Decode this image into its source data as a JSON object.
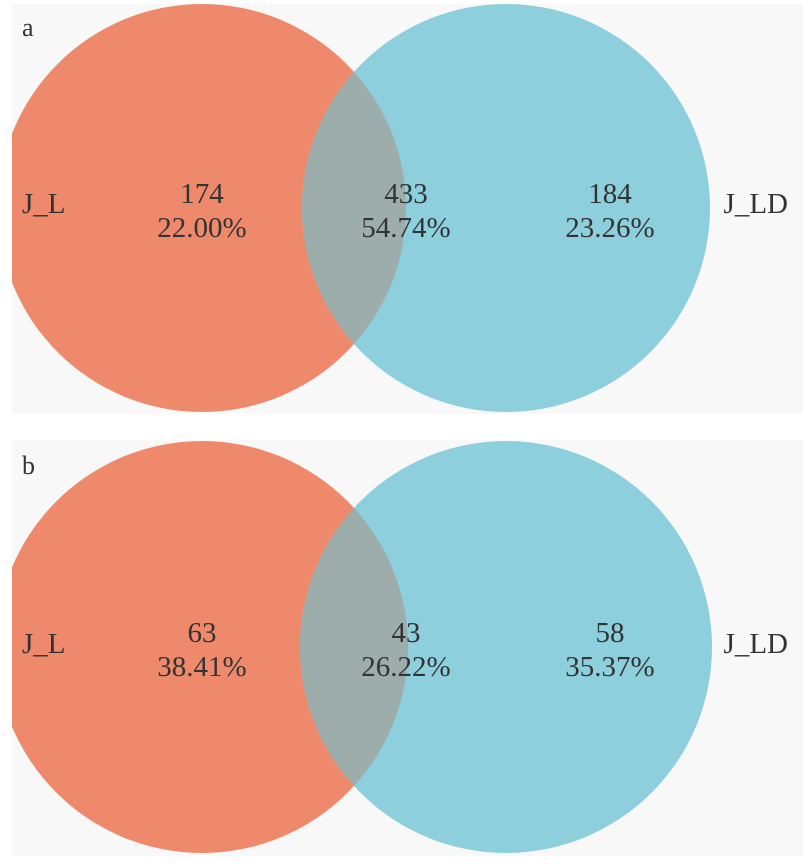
{
  "colors": {
    "left": "#ee8a6b",
    "right": "#8dcfdd",
    "overlap": "#9cadab",
    "text": "#333333"
  },
  "panels": [
    {
      "letter": "a",
      "left_set": {
        "name": "J_L",
        "count": "174",
        "percent": "22.00%"
      },
      "overlap": {
        "count": "433",
        "percent": "54.74%"
      },
      "right_set": {
        "name": "J_LD",
        "count": "184",
        "percent": "23.26%"
      }
    },
    {
      "letter": "b",
      "left_set": {
        "name": "J_L",
        "count": "63",
        "percent": "38.41%"
      },
      "overlap": {
        "count": "43",
        "percent": "26.22%"
      },
      "right_set": {
        "name": "J_LD",
        "count": "58",
        "percent": "35.37%"
      }
    }
  ]
}
